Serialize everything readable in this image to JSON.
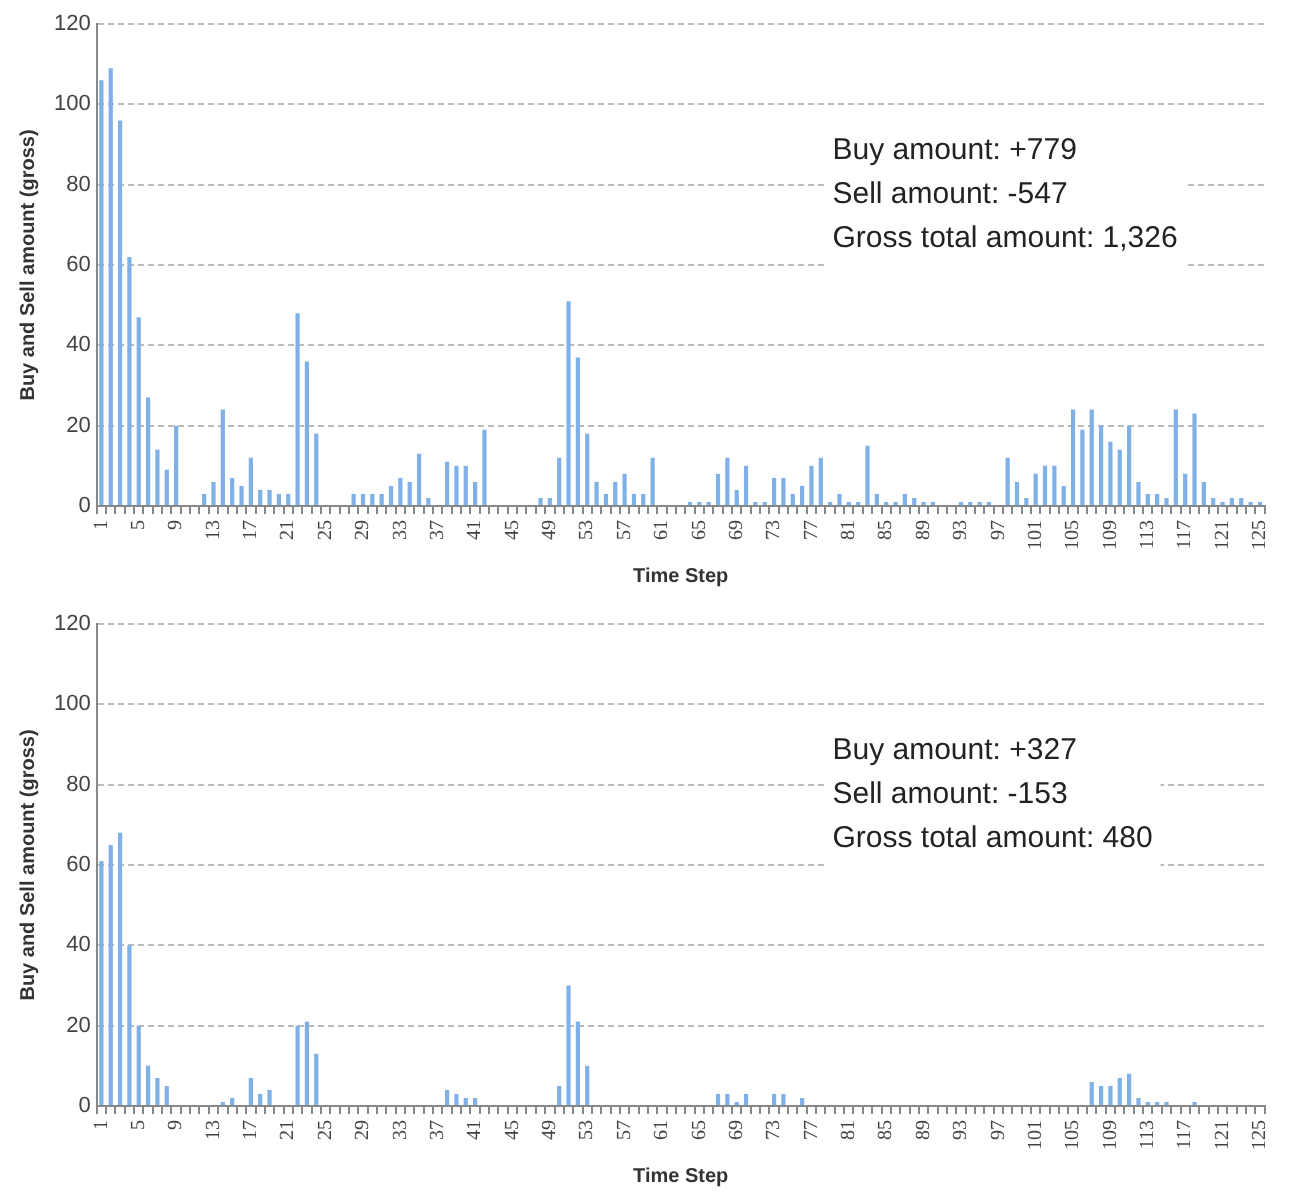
{
  "chart_data": [
    {
      "type": "bar",
      "xlabel": "Time Step",
      "ylabel": "Buy and Sell amount (gross)",
      "color": "#7fb0e8",
      "ylim": [
        0,
        120
      ],
      "yticks": [
        0,
        20,
        40,
        60,
        80,
        100,
        120
      ],
      "grid": "y",
      "annotations": [
        "Buy amount: +779",
        "Sell amount: -547",
        "Gross total amount: 1,326"
      ],
      "categories": [
        "1",
        null,
        null,
        null,
        "5",
        null,
        null,
        null,
        "9",
        null,
        null,
        null,
        "13",
        null,
        null,
        null,
        "17",
        null,
        null,
        null,
        "21",
        null,
        null,
        null,
        "25",
        null,
        null,
        null,
        "29",
        null,
        null,
        null,
        "33",
        null,
        null,
        null,
        "37",
        null,
        null,
        null,
        "41",
        null,
        null,
        null,
        "45",
        null,
        null,
        null,
        "49",
        null,
        null,
        null,
        "53",
        null,
        null,
        null,
        "57",
        null,
        null,
        null,
        "61",
        null,
        null,
        null,
        "65",
        null,
        null,
        null,
        "69",
        null,
        null,
        null,
        "73",
        null,
        null,
        null,
        "77",
        null,
        null,
        null,
        "81",
        null,
        null,
        null,
        "85",
        null,
        null,
        null,
        "89",
        null,
        null,
        null,
        "93",
        null,
        null,
        null,
        "97",
        null,
        null,
        null,
        "101",
        null,
        null,
        null,
        "105",
        null,
        null,
        null,
        "109",
        null,
        null,
        null,
        "113",
        null,
        null,
        null,
        "117",
        null,
        null,
        null,
        "121",
        null,
        null,
        null,
        "125"
      ],
      "values": [
        106,
        109,
        96,
        62,
        47,
        27,
        14,
        9,
        20,
        0,
        0,
        3,
        6,
        24,
        7,
        5,
        12,
        4,
        4,
        3,
        3,
        48,
        36,
        18,
        0,
        0,
        0,
        3,
        3,
        3,
        3,
        5,
        7,
        6,
        13,
        2,
        0,
        11,
        10,
        10,
        6,
        19,
        0,
        0,
        0,
        0,
        0,
        2,
        2,
        12,
        51,
        37,
        18,
        6,
        3,
        6,
        8,
        3,
        3,
        12,
        0,
        0,
        0,
        1,
        1,
        1,
        8,
        12,
        4,
        10,
        1,
        1,
        7,
        7,
        3,
        5,
        10,
        12,
        1,
        3,
        1,
        1,
        15,
        3,
        1,
        1,
        3,
        2,
        1,
        1,
        0,
        0,
        1,
        1,
        1,
        1,
        0,
        12,
        6,
        2,
        8,
        10,
        10,
        5,
        24,
        19,
        24,
        20,
        16,
        14,
        20,
        6,
        3,
        3,
        2,
        24,
        8,
        23,
        6,
        2,
        1,
        2,
        2,
        1,
        1
      ]
    },
    {
      "type": "bar",
      "xlabel": "Time Step",
      "ylabel": "Buy and Sell amount (gross)",
      "color": "#7fb0e8",
      "ylim": [
        0,
        120
      ],
      "yticks": [
        0,
        20,
        40,
        60,
        80,
        100,
        120
      ],
      "grid": "y",
      "annotations": [
        "Buy amount: +327",
        "Sell amount: -153",
        "Gross total amount: 480"
      ],
      "categories": [
        "1",
        null,
        null,
        null,
        "5",
        null,
        null,
        null,
        "9",
        null,
        null,
        null,
        "13",
        null,
        null,
        null,
        "17",
        null,
        null,
        null,
        "21",
        null,
        null,
        null,
        "25",
        null,
        null,
        null,
        "29",
        null,
        null,
        null,
        "33",
        null,
        null,
        null,
        "37",
        null,
        null,
        null,
        "41",
        null,
        null,
        null,
        "45",
        null,
        null,
        null,
        "49",
        null,
        null,
        null,
        "53",
        null,
        null,
        null,
        "57",
        null,
        null,
        null,
        "61",
        null,
        null,
        null,
        "65",
        null,
        null,
        null,
        "69",
        null,
        null,
        null,
        "73",
        null,
        null,
        null,
        "77",
        null,
        null,
        null,
        "81",
        null,
        null,
        null,
        "85",
        null,
        null,
        null,
        "89",
        null,
        null,
        null,
        "93",
        null,
        null,
        null,
        "97",
        null,
        null,
        null,
        "101",
        null,
        null,
        null,
        "105",
        null,
        null,
        null,
        "109",
        null,
        null,
        null,
        "113",
        null,
        null,
        null,
        "117",
        null,
        null,
        null,
        "121",
        null,
        null,
        null,
        "125"
      ],
      "values": [
        61,
        65,
        68,
        40,
        20,
        10,
        7,
        5,
        0,
        0,
        0,
        0,
        0,
        1,
        2,
        0,
        7,
        3,
        4,
        0,
        0,
        20,
        21,
        13,
        0,
        0,
        0,
        0,
        0,
        0,
        0,
        0,
        0,
        0,
        0,
        0,
        0,
        4,
        3,
        2,
        2,
        0,
        0,
        0,
        0,
        0,
        0,
        0,
        0,
        5,
        30,
        21,
        10,
        0,
        0,
        0,
        0,
        0,
        0,
        0,
        0,
        0,
        0,
        0,
        0,
        0,
        3,
        3,
        1,
        3,
        0,
        0,
        3,
        3,
        0,
        2,
        0,
        0,
        0,
        0,
        0,
        0,
        0,
        0,
        0,
        0,
        0,
        0,
        0,
        0,
        0,
        0,
        0,
        0,
        0,
        0,
        0,
        0,
        0,
        0,
        0,
        0,
        0,
        0,
        0,
        0,
        6,
        5,
        5,
        7,
        8,
        2,
        1,
        1,
        1,
        0,
        0,
        1,
        0,
        0,
        0,
        0,
        0,
        0,
        0
      ]
    }
  ]
}
